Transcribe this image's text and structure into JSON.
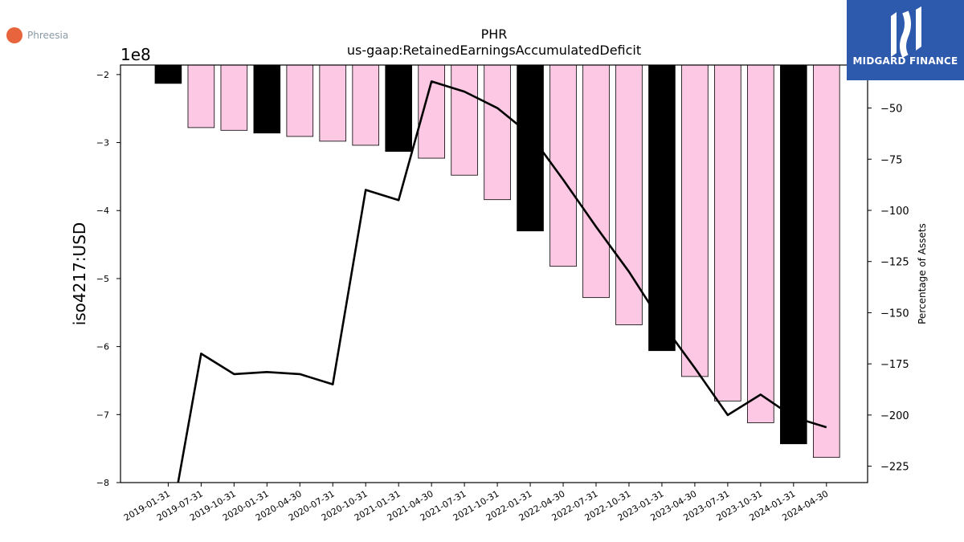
{
  "logos": {
    "company_name": "Phreesia",
    "brand_name": "MIDGARD FINANCE",
    "company_color": "#e8643c",
    "brand_color": "#2d5aad"
  },
  "chart_data": {
    "type": "bar",
    "title": "PHR",
    "subtitle": "us-gaap:RetainedEarningsAccumulatedDeficit",
    "ylabel": "iso4217:USD",
    "y_offset_label": "1e8",
    "y2label": "Percentage of Assets",
    "ylim": [
      -8,
      -1.86
    ],
    "y2lim": [
      -233,
      -29
    ],
    "y_ticks": [
      -2,
      -3,
      -4,
      -5,
      -6,
      -7,
      -8
    ],
    "y2_ticks": [
      -50,
      -75,
      -100,
      -125,
      -150,
      -175,
      -200,
      -225
    ],
    "grid": false,
    "categories": [
      "2019-01-31",
      "2019-07-31",
      "2019-10-31",
      "2020-01-31",
      "2020-04-30",
      "2020-07-31",
      "2020-10-31",
      "2021-01-31",
      "2021-04-30",
      "2021-07-31",
      "2021-10-31",
      "2022-01-31",
      "2022-04-30",
      "2022-07-31",
      "2022-10-31",
      "2023-01-31",
      "2023-04-30",
      "2023-07-31",
      "2023-10-31",
      "2024-01-31",
      "2024-04-30"
    ],
    "values": [
      -2.13,
      -2.78,
      -2.82,
      -2.86,
      -2.91,
      -2.98,
      -3.04,
      -3.13,
      -3.23,
      -3.48,
      -3.84,
      -4.3,
      -4.82,
      -5.28,
      -5.68,
      -6.06,
      -6.44,
      -6.8,
      -7.12,
      -7.43,
      -7.63
    ],
    "bar_colors": [
      "#000000",
      "#fcc8e4",
      "#fcc8e4",
      "#000000",
      "#fcc8e4",
      "#fcc8e4",
      "#fcc8e4",
      "#000000",
      "#fcc8e4",
      "#fcc8e4",
      "#fcc8e4",
      "#000000",
      "#fcc8e4",
      "#fcc8e4",
      "#fcc8e4",
      "#000000",
      "#fcc8e4",
      "#fcc8e4",
      "#fcc8e4",
      "#000000",
      "#fcc8e4"
    ],
    "series": [
      {
        "axis": "right",
        "type": "line",
        "color": "#000000",
        "values": [
          -260,
          -170,
          -180,
          -179,
          -180,
          -185,
          -90,
          -95,
          -37,
          -42,
          -50,
          -63,
          -85,
          -108,
          -130,
          -155,
          -177,
          -200,
          -190,
          -201,
          -206
        ]
      }
    ]
  }
}
